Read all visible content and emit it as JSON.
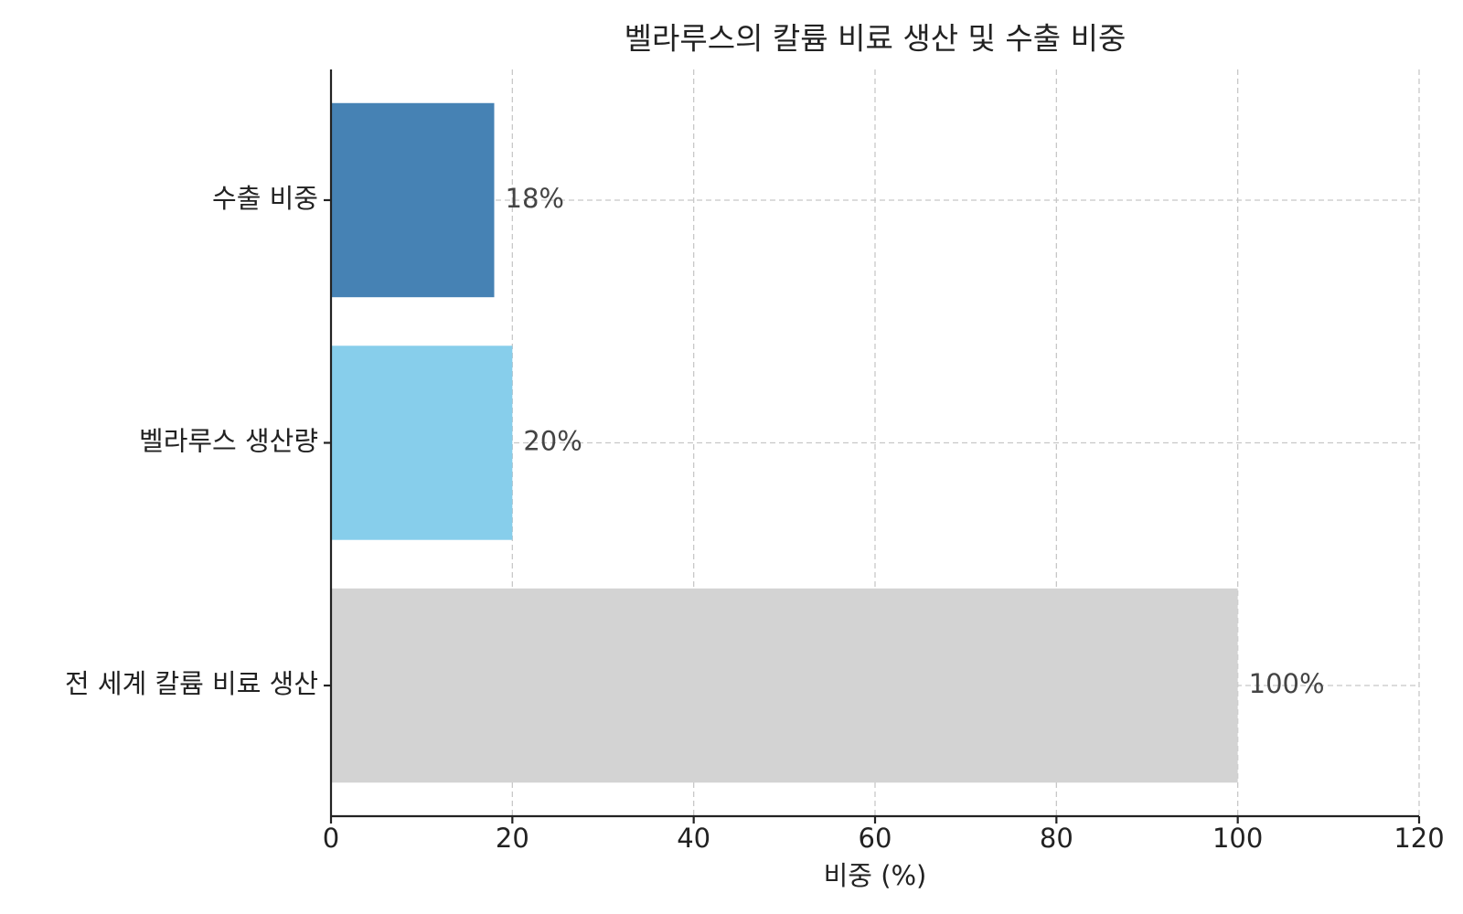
{
  "chart_data": {
    "type": "barh",
    "title": "벨라루스의 칼륨 비료 생산 및 수출 비중",
    "x_label": "비중 (%)",
    "categories": [
      "전 세계 칼륨 비료 생산",
      "벨라루스 생산량",
      "수출 비중"
    ],
    "values": [
      100,
      20,
      18
    ],
    "value_labels": [
      "100%",
      "20%",
      "18%"
    ],
    "colors": [
      "#d3d3d3",
      "#87ceeb",
      "#4682b4"
    ],
    "xlim": [
      0,
      120
    ],
    "xticks": [
      0,
      20,
      40,
      60,
      80,
      100,
      120
    ],
    "grid": true
  }
}
